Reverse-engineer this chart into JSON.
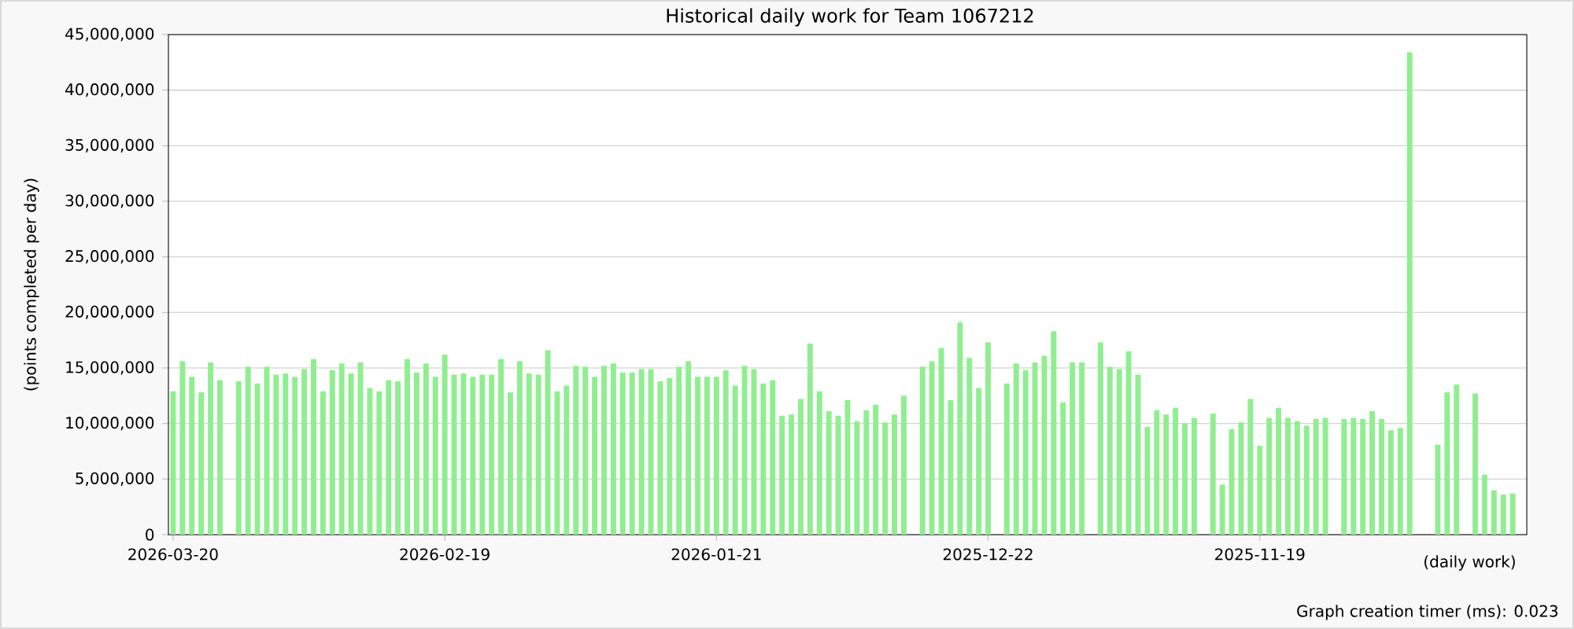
{
  "chart_data": {
    "type": "bar",
    "title": "Historical daily work for Team 1067212",
    "xlabel": "(daily work)",
    "ylabel": "(points completed per day)",
    "categories": [
      "2026-03-20",
      null,
      null,
      null,
      null,
      null,
      null,
      null,
      null,
      null,
      null,
      null,
      null,
      null,
      null,
      null,
      null,
      null,
      null,
      null,
      null,
      null,
      null,
      null,
      null,
      null,
      null,
      null,
      null,
      "2026-02-19",
      null,
      null,
      null,
      null,
      null,
      null,
      null,
      null,
      null,
      null,
      null,
      null,
      null,
      null,
      null,
      null,
      null,
      null,
      null,
      null,
      null,
      null,
      null,
      null,
      null,
      null,
      null,
      null,
      "2026-01-21",
      null,
      null,
      null,
      null,
      null,
      null,
      null,
      null,
      null,
      null,
      null,
      null,
      null,
      null,
      null,
      null,
      null,
      null,
      null,
      null,
      null,
      null,
      null,
      null,
      null,
      null,
      null,
      null,
      "2025-12-22",
      null,
      null,
      null,
      null,
      null,
      null,
      null,
      null,
      null,
      null,
      null,
      null,
      null,
      null,
      null,
      null,
      null,
      null,
      null,
      null,
      null,
      null,
      null,
      null,
      null,
      null,
      null,
      null,
      "2025-11-19",
      null,
      null,
      null,
      null,
      null,
      null,
      null,
      null,
      null,
      null,
      null,
      null,
      null,
      null,
      null,
      null,
      null,
      null,
      null,
      null,
      null,
      null,
      null,
      null,
      null,
      null,
      null
    ],
    "values": [
      12900000,
      15600000,
      14200000,
      12800000,
      15500000,
      13900000,
      null,
      13800000,
      15100000,
      13600000,
      15100000,
      14400000,
      14500000,
      14200000,
      14900000,
      15800000,
      12900000,
      14800000,
      15400000,
      14500000,
      15500000,
      13200000,
      12900000,
      13900000,
      13800000,
      15800000,
      14600000,
      15400000,
      14200000,
      16200000,
      14400000,
      14500000,
      14200000,
      14400000,
      14400000,
      15800000,
      12800000,
      15600000,
      14500000,
      14400000,
      16600000,
      12900000,
      13400000,
      15200000,
      15100000,
      14200000,
      15200000,
      15400000,
      14600000,
      14600000,
      14900000,
      14900000,
      13800000,
      14100000,
      15100000,
      15600000,
      14200000,
      14200000,
      14200000,
      14800000,
      13400000,
      15200000,
      14900000,
      13600000,
      13900000,
      10700000,
      10800000,
      12200000,
      17200000,
      12900000,
      11100000,
      10700000,
      12100000,
      10200000,
      11200000,
      11700000,
      10100000,
      10800000,
      12500000,
      null,
      15100000,
      15600000,
      16800000,
      12100000,
      19100000,
      15900000,
      13200000,
      17300000,
      null,
      13600000,
      15400000,
      14800000,
      15500000,
      16100000,
      18300000,
      11900000,
      15500000,
      15500000,
      null,
      17300000,
      15100000,
      14900000,
      16500000,
      14400000,
      9700000,
      11200000,
      10800000,
      11400000,
      10000000,
      10500000,
      null,
      10900000,
      4500000,
      9500000,
      10100000,
      12200000,
      8000000,
      10500000,
      11400000,
      10500000,
      10200000,
      9800000,
      10400000,
      10500000,
      null,
      10400000,
      10500000,
      10400000,
      11100000,
      10400000,
      9400000,
      9600000,
      43400000,
      null,
      null,
      8100000,
      12800000,
      13500000,
      null,
      12700000,
      5400000,
      4000000,
      3600000,
      3700000
    ],
    "color": "#90ee90",
    "ylim": [
      0,
      45000000
    ],
    "yticks": [
      0,
      {
        "value": 5000000,
        "label": "5,000,000"
      },
      {
        "value": 10000000,
        "label": "10,000,000"
      },
      {
        "value": 15000000,
        "label": "15,000,000"
      },
      {
        "value": 20000000,
        "label": "20,000,000"
      },
      {
        "value": 25000000,
        "label": "25,000,000"
      },
      {
        "value": 30000000,
        "label": "30,000,000"
      },
      {
        "value": 35000000,
        "label": "35,000,000"
      },
      {
        "value": 40000000,
        "label": "40,000,000"
      },
      {
        "value": 45000000,
        "label": "45,000,000"
      }
    ],
    "grid": "y",
    "annotations": [
      "Graph creation timer (ms): 0.023"
    ]
  }
}
